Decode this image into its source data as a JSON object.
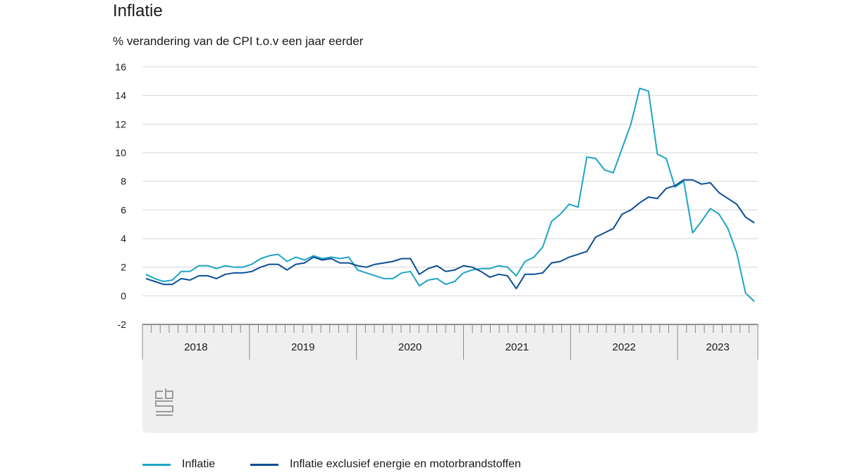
{
  "title": "Inflatie",
  "subtitle": "% verandering van de CPI t.o.v een jaar eerder",
  "logo_icon": "cbs-logo-icon",
  "chart_data": {
    "type": "line",
    "title": "Inflatie",
    "ylabel": "% verandering van de CPI t.o.v een jaar eerder",
    "ylim": [
      -2,
      16
    ],
    "yticks": [
      "-2",
      "0",
      "2",
      "4",
      "6",
      "8",
      "10",
      "12",
      "14",
      "16"
    ],
    "grid": true,
    "legend_position": "bottom",
    "x_start": "2018-01",
    "x_end": "2023-09",
    "year_labels": [
      "2018",
      "2019",
      "2020",
      "2021",
      "2022",
      "2023"
    ],
    "series": [
      {
        "name": "Inflatie",
        "color": "#1ea4c6",
        "values": [
          1.5,
          1.2,
          1.0,
          1.1,
          1.7,
          1.7,
          2.1,
          2.1,
          1.9,
          2.1,
          2.0,
          2.0,
          2.2,
          2.6,
          2.8,
          2.9,
          2.4,
          2.7,
          2.5,
          2.8,
          2.6,
          2.7,
          2.6,
          2.7,
          1.8,
          1.6,
          1.4,
          1.2,
          1.2,
          1.6,
          1.7,
          0.7,
          1.1,
          1.2,
          0.8,
          1.0,
          1.6,
          1.8,
          1.9,
          1.9,
          2.1,
          2.0,
          1.4,
          2.4,
          2.7,
          3.4,
          5.2,
          5.7,
          6.4,
          6.2,
          9.7,
          9.6,
          8.8,
          8.6,
          10.3,
          12.0,
          14.5,
          14.3,
          9.9,
          9.6,
          7.6,
          8.0,
          4.4,
          5.2,
          6.1,
          5.7,
          4.7,
          3.0,
          0.2,
          -0.4
        ],
        "x_first": "2018-01"
      },
      {
        "name": "Inflatie exclusief energie en motorbrandstoffen",
        "color": "#0b4e96",
        "values": [
          1.2,
          1.0,
          0.8,
          0.8,
          1.2,
          1.1,
          1.4,
          1.4,
          1.2,
          1.5,
          1.6,
          1.6,
          1.7,
          2.0,
          2.2,
          2.2,
          1.8,
          2.2,
          2.3,
          2.7,
          2.5,
          2.6,
          2.3,
          2.3,
          2.1,
          2.0,
          2.2,
          2.3,
          2.4,
          2.6,
          2.6,
          1.5,
          1.9,
          2.1,
          1.7,
          1.8,
          2.1,
          2.0,
          1.7,
          1.3,
          1.5,
          1.4,
          0.5,
          1.5,
          1.5,
          1.6,
          2.3,
          2.4,
          2.7,
          2.9,
          3.1,
          4.1,
          4.4,
          4.7,
          5.7,
          6.0,
          6.5,
          6.9,
          6.8,
          7.5,
          7.7,
          8.1,
          8.1,
          7.8,
          7.9,
          7.2,
          6.8,
          6.4,
          5.5,
          5.1
        ],
        "x_first": "2018-01"
      }
    ]
  }
}
